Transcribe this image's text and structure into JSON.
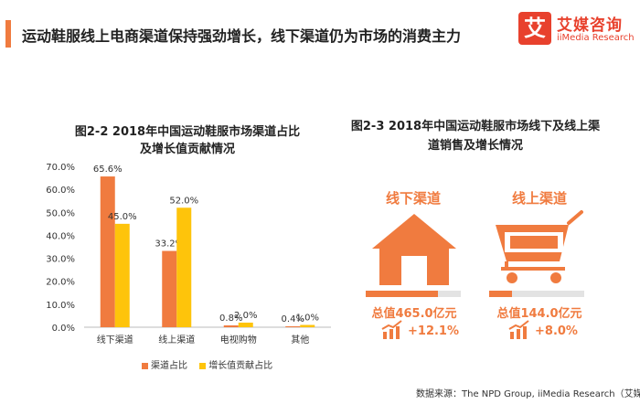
{
  "headline": "运动鞋服线上电商渠道保持强劲增长，线下渠道仍为市场的消费主力",
  "logo": {
    "mark": "艾",
    "cn": "艾媒咨询",
    "en": "iiMedia Research",
    "color": "#e8412d"
  },
  "colors": {
    "accent": "#f07b3f",
    "orange": "#f07b3f",
    "yellow": "#fec40b",
    "track": "#e3e3e3"
  },
  "chart_data": [
    {
      "type": "bar",
      "title": "图2-2 2018年中国运动鞋服市场渠道占比",
      "title_line2": "及增长值贡献情况",
      "categories": [
        "线下渠道",
        "线上渠道",
        "电视购物",
        "其他"
      ],
      "series": [
        {
          "name": "渠道占比",
          "color": "#f07b3f",
          "values": [
            65.6,
            33.2,
            0.8,
            0.4
          ],
          "labels": [
            "65.6%",
            "33.2%",
            "0.8%",
            "0.4%"
          ]
        },
        {
          "name": "增长值贡献占比",
          "color": "#fec40b",
          "values": [
            45.0,
            52.0,
            2.0,
            1.0
          ],
          "labels": [
            "45.0%",
            "52.0%",
            "2.0%",
            "1.0%"
          ]
        }
      ],
      "ylim": [
        0,
        70
      ],
      "yticks": [
        "0.0%",
        "10.0%",
        "20.0%",
        "30.0%",
        "40.0%",
        "50.0%",
        "60.0%",
        "70.0%"
      ],
      "ytick_values": [
        0,
        10,
        20,
        30,
        40,
        50,
        60,
        70
      ],
      "legend_position": "bottom",
      "grid": false
    }
  ],
  "infographic": {
    "title": "图2-3 2018年中国运动鞋服市场线下及线上渠",
    "title_line2": "道销售及增长情况",
    "offline": {
      "label": "线下渠道",
      "icon": "house-icon",
      "total": "总值465.0亿元",
      "growth": "+12.1%",
      "growth_icon": "growth-chart-icon",
      "share_fraction": 0.763
    },
    "online": {
      "label": "线上渠道",
      "icon": "shopping-cart-icon",
      "total": "总值144.0亿元",
      "growth": "+8.0%",
      "growth_icon": "growth-chart-icon",
      "share_fraction": 0.237
    }
  },
  "source": "数据来源：The NPD Group, iiMedia Research（艾媒咨询）"
}
